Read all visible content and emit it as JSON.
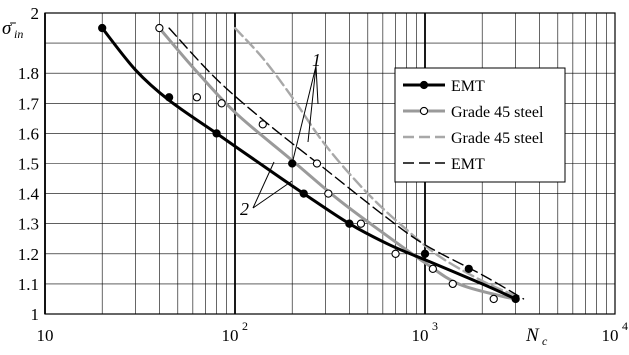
{
  "chart_data": {
    "type": "line",
    "title": "",
    "xlabel": "N",
    "xlabel_sub": "c",
    "ylabel": "σ̄",
    "ylabel_sub": "in",
    "x_scale": "log",
    "xlim": [
      10,
      10000
    ],
    "ylim": [
      1,
      2
    ],
    "grid": true,
    "legend_position": "right",
    "x_ticks": [
      {
        "value": 10,
        "label": "10",
        "exp": ""
      },
      {
        "value": 100,
        "label": "10",
        "exp": "2"
      },
      {
        "value": 1000,
        "label": "10",
        "exp": "3"
      },
      {
        "value": 10000,
        "label": "10",
        "exp": "4"
      }
    ],
    "y_ticks": [
      {
        "value": 1,
        "label": "1"
      },
      {
        "value": 1.1,
        "label": "1.1"
      },
      {
        "value": 1.2,
        "label": "1.2"
      },
      {
        "value": 1.3,
        "label": "1.3"
      },
      {
        "value": 1.4,
        "label": "1.4"
      },
      {
        "value": 1.5,
        "label": "1.5"
      },
      {
        "value": 1.6,
        "label": "1.6"
      },
      {
        "value": 1.7,
        "label": "1.7"
      },
      {
        "value": 1.8,
        "label": "1.8"
      },
      {
        "value": 2,
        "label": "2"
      }
    ],
    "series": [
      {
        "name": "EMT",
        "style": "solid-black-filled-markers",
        "color": "#000000",
        "curve": [
          [
            20,
            1.95
          ],
          [
            30,
            1.81
          ],
          [
            45,
            1.71
          ],
          [
            80,
            1.6
          ],
          [
            150,
            1.48
          ],
          [
            230,
            1.4
          ],
          [
            400,
            1.3
          ],
          [
            650,
            1.23
          ],
          [
            1000,
            1.18
          ],
          [
            2000,
            1.1
          ],
          [
            3000,
            1.05
          ]
        ],
        "points": [
          [
            20,
            1.95
          ],
          [
            45,
            1.72
          ],
          [
            80,
            1.6
          ],
          [
            200,
            1.5
          ],
          [
            230,
            1.4
          ],
          [
            400,
            1.3
          ],
          [
            1000,
            1.2
          ],
          [
            1700,
            1.15
          ],
          [
            3000,
            1.05
          ]
        ]
      },
      {
        "name": "Grade 45 steel",
        "style": "solid-gray-open-markers",
        "color": "#9a9a9a",
        "curve": [
          [
            40,
            1.95
          ],
          [
            60,
            1.82
          ],
          [
            100,
            1.67
          ],
          [
            200,
            1.51
          ],
          [
            350,
            1.38
          ],
          [
            600,
            1.27
          ],
          [
            1000,
            1.17
          ],
          [
            1500,
            1.1
          ],
          [
            2500,
            1.06
          ],
          [
            3000,
            1.05
          ]
        ],
        "points": [
          [
            40,
            1.95
          ],
          [
            63,
            1.72
          ],
          [
            85,
            1.7
          ],
          [
            140,
            1.63
          ],
          [
            270,
            1.5
          ],
          [
            310,
            1.4
          ],
          [
            460,
            1.3
          ],
          [
            700,
            1.2
          ],
          [
            1100,
            1.15
          ],
          [
            1400,
            1.1
          ],
          [
            2300,
            1.05
          ]
        ]
      },
      {
        "name": "Grade 45 steel",
        "style": "dashed-gray",
        "color": "#a8a8a8",
        "curve": [
          [
            100,
            1.95
          ],
          [
            140,
            1.85
          ],
          [
            200,
            1.72
          ],
          [
            300,
            1.56
          ],
          [
            500,
            1.4
          ],
          [
            800,
            1.28
          ],
          [
            1200,
            1.19
          ],
          [
            2000,
            1.11
          ],
          [
            3000,
            1.06
          ]
        ],
        "points": []
      },
      {
        "name": "EMT",
        "style": "dashed-black",
        "color": "#000000",
        "curve": [
          [
            45,
            1.95
          ],
          [
            80,
            1.78
          ],
          [
            150,
            1.63
          ],
          [
            300,
            1.48
          ],
          [
            600,
            1.33
          ],
          [
            1000,
            1.23
          ],
          [
            2000,
            1.13
          ],
          [
            3300,
            1.05
          ]
        ],
        "points": []
      }
    ],
    "annotations": [
      {
        "text": "1",
        "x": 420,
        "y": 1.9
      },
      {
        "text": "2",
        "x": 42,
        "y": 1.4
      }
    ]
  }
}
